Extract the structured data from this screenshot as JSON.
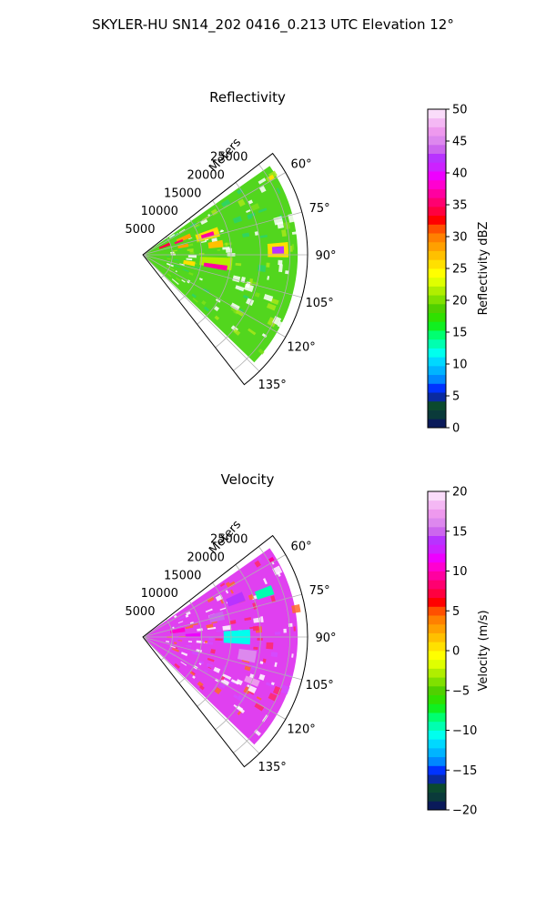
{
  "figure": {
    "title": "SKYLER-HU  SN14_202  0416_0.213 UTC Elevation 12°"
  },
  "chart_data": [
    {
      "type": "heatmap",
      "title": "Reflectivity",
      "range_label": "Meters",
      "range_ticks": [
        "5000",
        "10000",
        "15000",
        "20000",
        "25000"
      ],
      "range_tick_values": [
        5000,
        10000,
        15000,
        20000,
        25000
      ],
      "range_max": 28000,
      "azimuth_ticks": [
        "60°",
        "75°",
        "90°",
        "105°",
        "120°",
        "135°"
      ],
      "azimuth_tick_values": [
        60,
        75,
        90,
        105,
        120,
        135
      ],
      "azimuth_range": [
        52,
        142
      ],
      "grid": true,
      "colorbar": {
        "label": "Reflectivity dBZ",
        "min": 0,
        "max": 50,
        "ticks": [
          "0",
          "5",
          "10",
          "15",
          "20",
          "25",
          "30",
          "35",
          "40",
          "45",
          "50"
        ],
        "tick_values": [
          0,
          5,
          10,
          15,
          20,
          25,
          30,
          35,
          40,
          45,
          50
        ],
        "colors": [
          "#0a1a5a",
          "#0a3a3a",
          "#0b4a2e",
          "#0a2aa0",
          "#0033ff",
          "#0088ff",
          "#00b4ff",
          "#00d8ff",
          "#00ffee",
          "#00ffb0",
          "#00ff70",
          "#10f020",
          "#30e000",
          "#50d000",
          "#80e000",
          "#b0ee00",
          "#dfff00",
          "#ffff00",
          "#ffe000",
          "#ffc000",
          "#ffa000",
          "#ff8000",
          "#ff5000",
          "#ff0000",
          "#ff0040",
          "#ff0070",
          "#ff00a0",
          "#ff00d0",
          "#ee00ff",
          "#cc22ff",
          "#b833ff",
          "#cc66ee",
          "#dd88ee",
          "#ee99ee",
          "#f4b8f4",
          "#fadcfa"
        ]
      },
      "cells": [
        {
          "az": 96,
          "r": 12500,
          "da": 8,
          "dr": 5500,
          "value": 22
        },
        {
          "az": 99,
          "r": 12500,
          "da": 3.5,
          "dr": 4000,
          "value": 37
        },
        {
          "az": 88,
          "r": 23000,
          "da": 6,
          "dr": 3500,
          "value": 25
        },
        {
          "az": 88,
          "r": 23000,
          "da": 3,
          "dr": 2000,
          "value": 43
        },
        {
          "az": 73,
          "r": 11500,
          "da": 7,
          "dr": 4000,
          "value": 26
        },
        {
          "az": 73,
          "r": 11500,
          "da": 3,
          "dr": 2200,
          "value": 37
        },
        {
          "az": 68,
          "r": 7500,
          "da": 5,
          "dr": 2500,
          "value": 28
        },
        {
          "az": 68,
          "r": 4000,
          "da": 6,
          "dr": 2000,
          "value": 34
        },
        {
          "az": 70,
          "r": 6500,
          "da": 3,
          "dr": 1500,
          "value": 36
        },
        {
          "az": 82,
          "r": 12500,
          "da": 5,
          "dr": 2500,
          "value": 27
        },
        {
          "az": 100,
          "r": 8000,
          "da": 5,
          "dr": 2000,
          "value": 25
        },
        {
          "az": 78,
          "r": 7000,
          "da": 4,
          "dr": 1800,
          "value": 28
        },
        {
          "az": 59,
          "r": 25500,
          "da": 1.5,
          "dr": 800,
          "value": 26
        }
      ]
    },
    {
      "type": "heatmap",
      "title": "Velocity",
      "range_label": "Meters",
      "range_ticks": [
        "5000",
        "10000",
        "15000",
        "20000",
        "25000"
      ],
      "range_tick_values": [
        5000,
        10000,
        15000,
        20000,
        25000
      ],
      "range_max": 28000,
      "azimuth_ticks": [
        "60°",
        "75°",
        "90°",
        "105°",
        "120°",
        "135°"
      ],
      "azimuth_tick_values": [
        60,
        75,
        90,
        105,
        120,
        135
      ],
      "azimuth_range": [
        52,
        142
      ],
      "grid": true,
      "colorbar": {
        "label": "Velocity (m/s)",
        "min": -20,
        "max": 20,
        "ticks": [
          "−20",
          "−15",
          "−10",
          "−5",
          "0",
          "5",
          "10",
          "15",
          "20"
        ],
        "tick_values": [
          -20,
          -15,
          -10,
          -5,
          0,
          5,
          10,
          15,
          20
        ],
        "colors": [
          "#0a1a5a",
          "#0a3a3a",
          "#0b4a2e",
          "#0a2aa0",
          "#0033ff",
          "#0088ff",
          "#00b4ff",
          "#00d8ff",
          "#00ffee",
          "#00ffb0",
          "#00ff70",
          "#10f020",
          "#30e000",
          "#50d000",
          "#80e000",
          "#b0ee00",
          "#dfff00",
          "#ffff00",
          "#ffe000",
          "#ffc000",
          "#ffa000",
          "#ff8000",
          "#ff5000",
          "#ff0000",
          "#ff0040",
          "#ff0070",
          "#ff00a0",
          "#ff00d0",
          "#ee00ff",
          "#cc22ff",
          "#b833ff",
          "#cc66ee",
          "#dd88ee",
          "#ee99ee",
          "#f4b8f4",
          "#fadcfa"
        ]
      },
      "cells": [
        {
          "az": 90,
          "r": 16000,
          "da": 8,
          "dr": 4500,
          "value": -11
        },
        {
          "az": 75,
          "r": 13000,
          "da": 6,
          "dr": 2500,
          "value": 15
        },
        {
          "az": 68,
          "r": 17000,
          "da": 5,
          "dr": 3000,
          "value": 14
        },
        {
          "az": 70,
          "r": 22000,
          "da": 4,
          "dr": 3000,
          "value": -10
        },
        {
          "az": 100,
          "r": 18000,
          "da": 6,
          "dr": 3000,
          "value": 16
        },
        {
          "az": 80,
          "r": 6000,
          "da": 6,
          "dr": 2500,
          "value": 10
        },
        {
          "az": 88,
          "r": 8500,
          "da": 4,
          "dr": 2500,
          "value": 12
        },
        {
          "az": 112,
          "r": 20000,
          "da": 3,
          "dr": 2500,
          "value": 17
        },
        {
          "az": 59,
          "r": 25500,
          "da": 1.5,
          "dr": 800,
          "value": 9
        }
      ]
    }
  ]
}
